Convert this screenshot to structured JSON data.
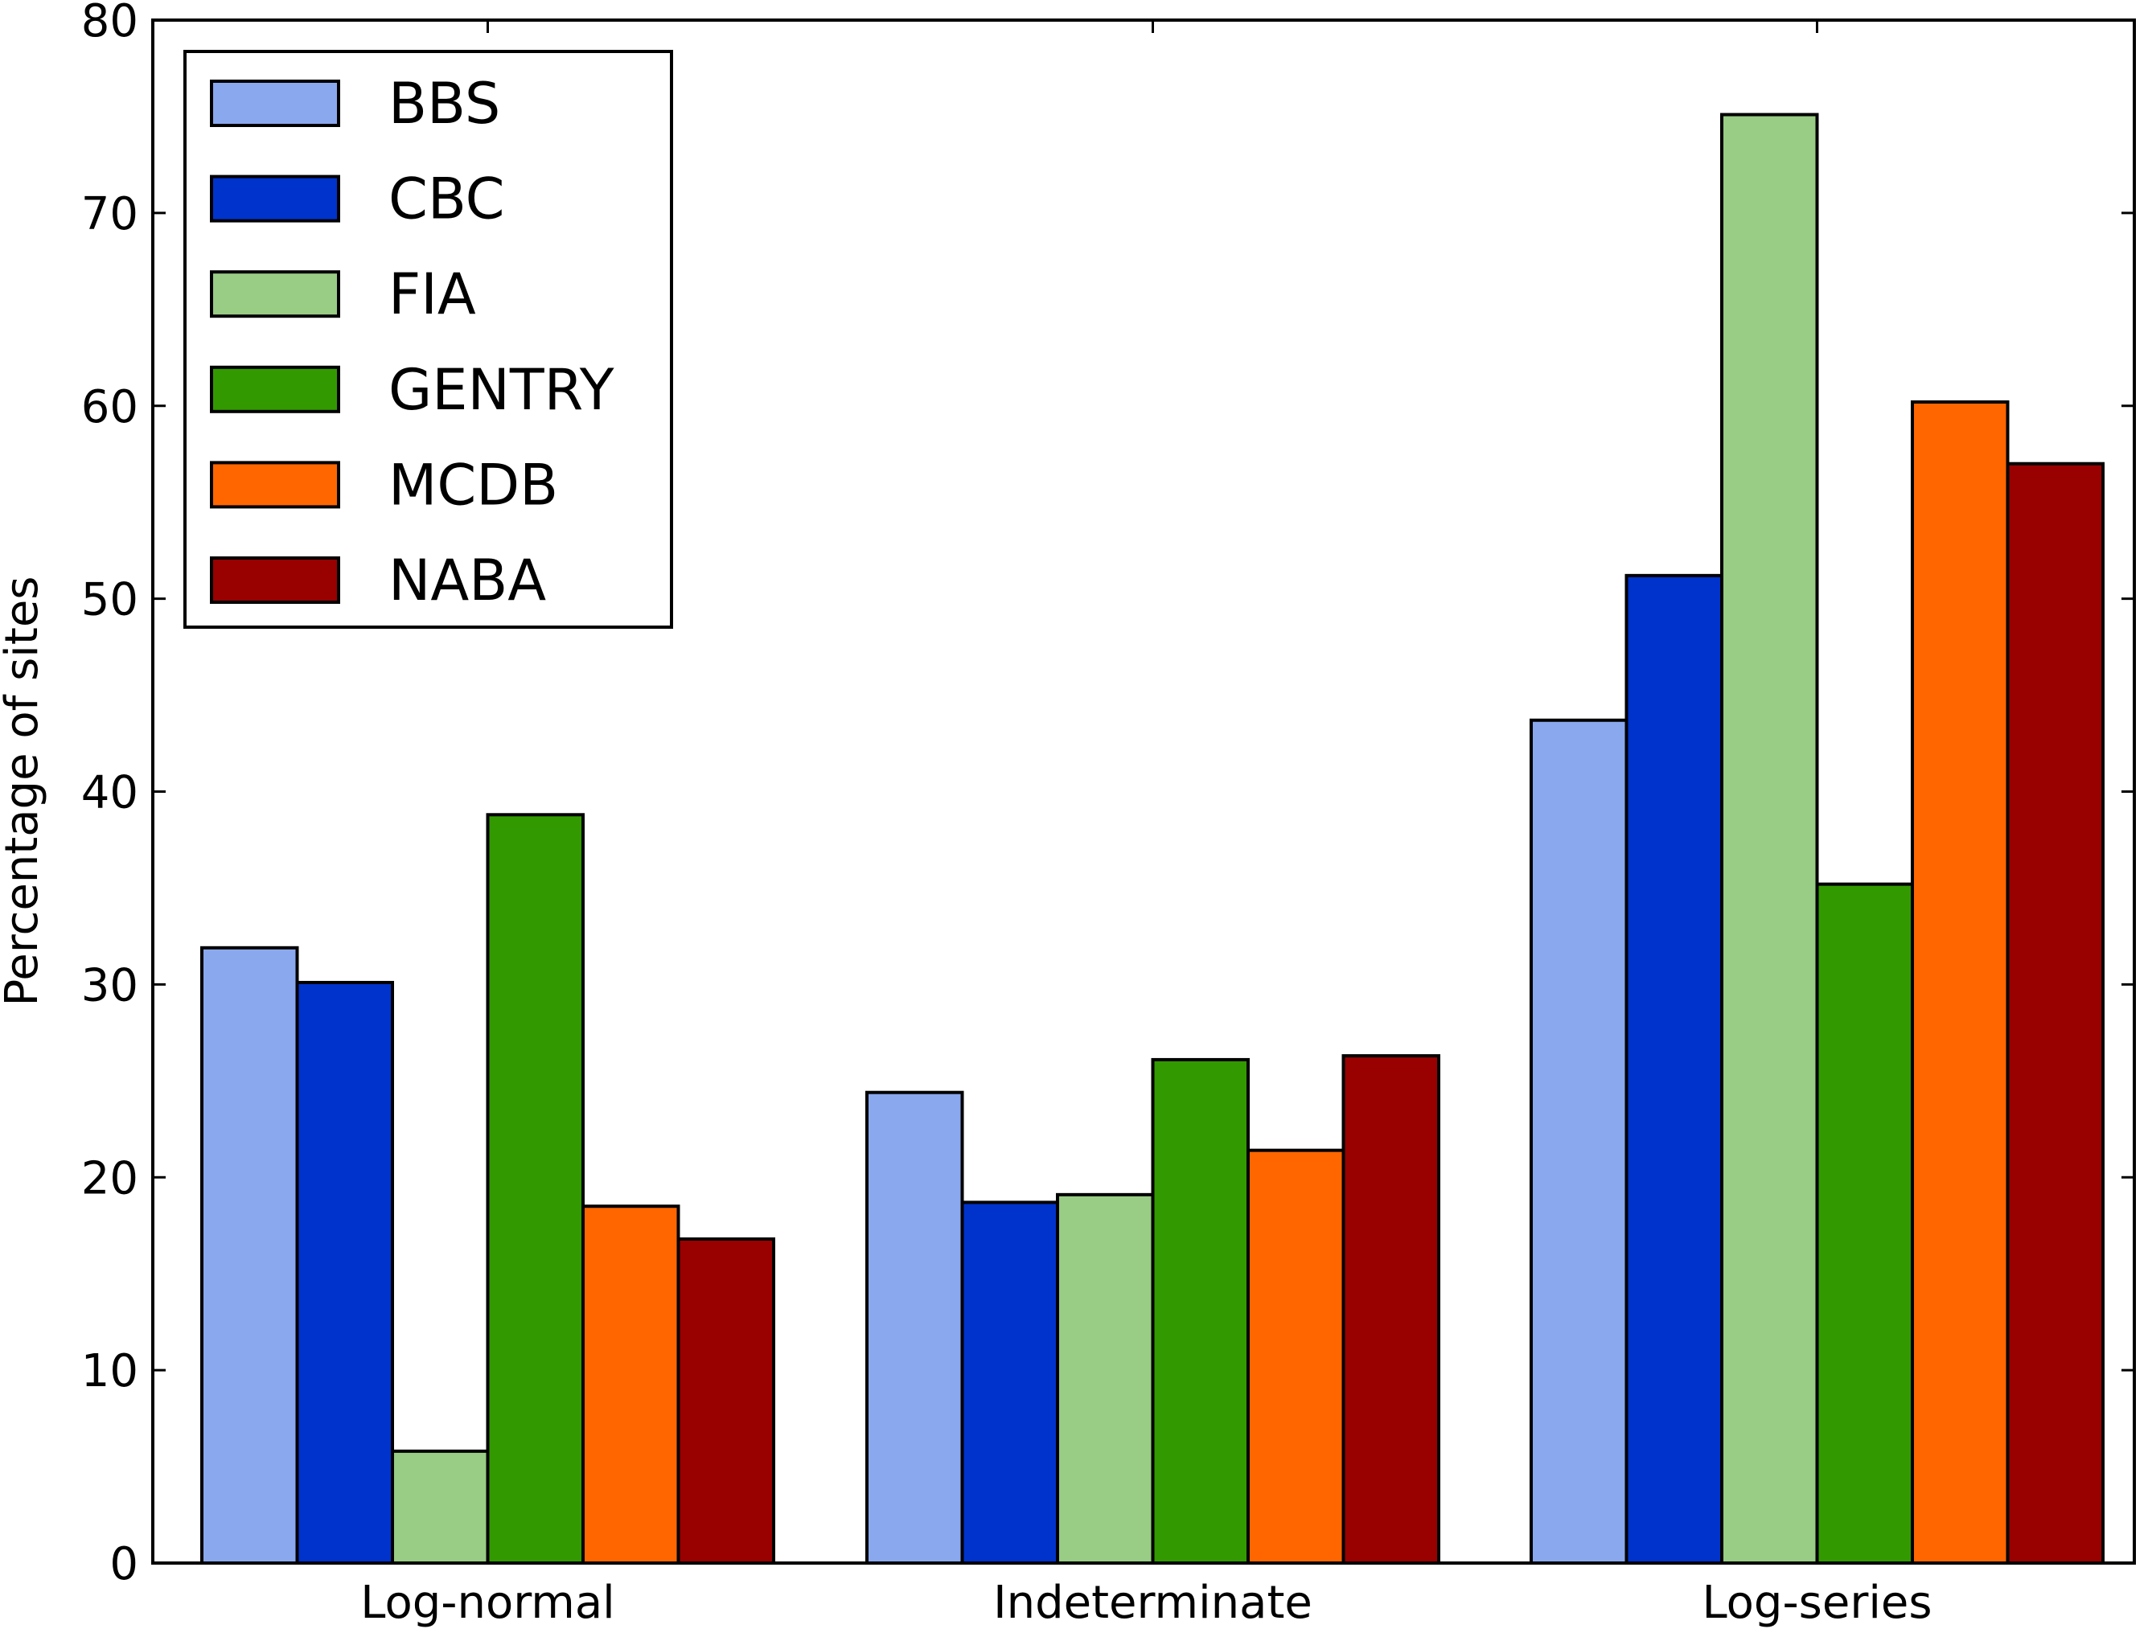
{
  "chart_data": {
    "type": "bar",
    "categories": [
      "Log-normal",
      "Indeterminate",
      "Log-series"
    ],
    "series": [
      {
        "name": "BBS",
        "color": "#8aa8ee",
        "values": [
          31.9,
          24.4,
          43.7
        ]
      },
      {
        "name": "CBC",
        "color": "#0033cc",
        "values": [
          30.1,
          18.7,
          51.2
        ]
      },
      {
        "name": "FIA",
        "color": "#99cc85",
        "values": [
          5.8,
          19.1,
          75.1
        ]
      },
      {
        "name": "GENTRY",
        "color": "#339900",
        "values": [
          38.8,
          26.1,
          35.2
        ]
      },
      {
        "name": "MCDB",
        "color": "#ff6600",
        "values": [
          18.5,
          21.4,
          60.2
        ]
      },
      {
        "name": "NABA",
        "color": "#990000",
        "values": [
          16.8,
          26.3,
          57.0
        ]
      }
    ],
    "title": "",
    "xlabel": "",
    "ylabel": "Percentage of sites",
    "ylim": [
      0,
      80
    ],
    "yticks": [
      "0",
      "10",
      "20",
      "30",
      "40",
      "50",
      "60",
      "70",
      "80"
    ],
    "grid": false,
    "legend_position": "top-left"
  }
}
